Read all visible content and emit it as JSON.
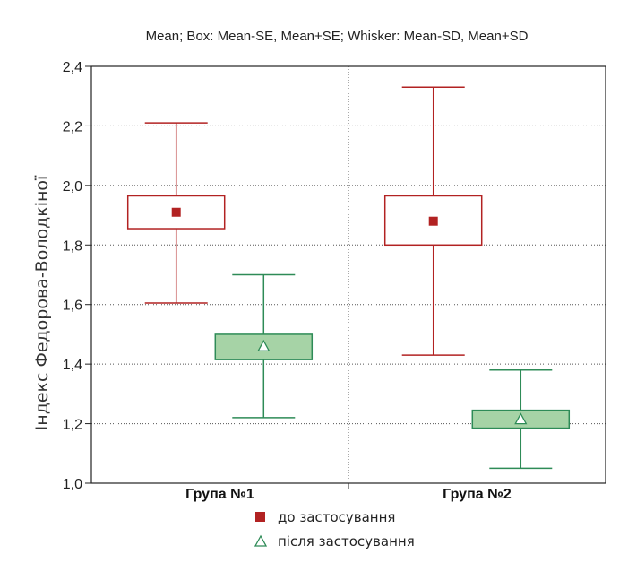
{
  "chart_data": {
    "type": "box",
    "title": "Mean; Box: Mean-SE, Mean+SE; Whisker: Mean-SD, Mean+SD",
    "ylabel": "Індекс Федорова-Володкіної",
    "xlabel": "",
    "ylim": [
      1.0,
      2.4
    ],
    "yticks": [
      "1,0",
      "1,2",
      "1,4",
      "1,6",
      "1,8",
      "2,0",
      "2,2",
      "2,4"
    ],
    "categories": [
      "Група №1",
      "Група №2"
    ],
    "grid": true,
    "legend_position": "bottom-center",
    "series": [
      {
        "name": "до застосування",
        "color": "#b22222",
        "fill": "#ffffff",
        "marker": "square",
        "mean": [
          1.91,
          1.88
        ],
        "box_low": [
          1.855,
          1.8
        ],
        "box_high": [
          1.965,
          1.965
        ],
        "whisker_low": [
          1.605,
          1.43
        ],
        "whisker_high": [
          2.21,
          2.33
        ]
      },
      {
        "name": "після застосування",
        "color": "#2e8b57",
        "fill": "#a6d3a6",
        "marker": "triangle",
        "mean": [
          1.46,
          1.215
        ],
        "box_low": [
          1.415,
          1.185
        ],
        "box_high": [
          1.5,
          1.245
        ],
        "whisker_low": [
          1.22,
          1.05
        ],
        "whisker_high": [
          1.7,
          1.38
        ]
      }
    ]
  }
}
